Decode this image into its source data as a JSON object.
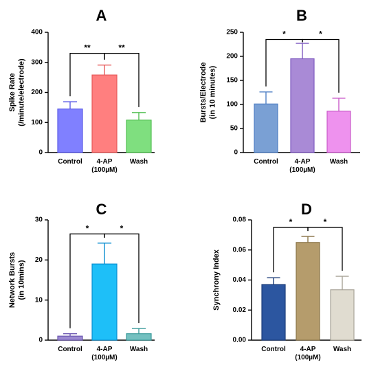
{
  "chart_data": [
    {
      "type": "bar",
      "panel": "A",
      "ylabel_lines": [
        "Spike Rate",
        "(/minute/electrode)"
      ],
      "categories": [
        [
          "Control"
        ],
        [
          "4-AP",
          "(100µM)"
        ],
        [
          "Wash"
        ]
      ],
      "values": [
        145,
        258,
        108
      ],
      "errors": [
        24,
        33,
        25
      ],
      "ylim": [
        0,
        400
      ],
      "yticks": [
        "0",
        "100",
        "200",
        "300",
        "400"
      ],
      "colors": [
        "#8080ff",
        "#ff7f7f",
        "#7fdf7f"
      ],
      "edge_colors": [
        "#5a5ae6",
        "#e65a5a",
        "#52bf52"
      ],
      "significance": [
        {
          "from": 0,
          "to": 1,
          "label": "**"
        },
        {
          "from": 1,
          "to": 2,
          "label": "**"
        }
      ],
      "bracket_y": 330
    },
    {
      "type": "bar",
      "panel": "B",
      "ylabel_lines": [
        "Bursts/Electrode",
        "(in 10 minutes)"
      ],
      "categories": [
        [
          "Control"
        ],
        [
          "4-AP",
          "(100µM)"
        ],
        [
          "Wash"
        ]
      ],
      "values": [
        101,
        195,
        86
      ],
      "errors": [
        25,
        32,
        27
      ],
      "ylim": [
        0,
        250
      ],
      "yticks": [
        "0",
        "50",
        "100",
        "150",
        "200",
        "250"
      ],
      "colors": [
        "#7aa0d4",
        "#a98ad6",
        "#ee92ee"
      ],
      "edge_colors": [
        "#4f7fc4",
        "#7f5ac0",
        "#c95ac9"
      ],
      "significance": [
        {
          "from": 0,
          "to": 1,
          "label": "*"
        },
        {
          "from": 1,
          "to": 2,
          "label": "*"
        }
      ],
      "bracket_y": 235
    },
    {
      "type": "bar",
      "panel": "C",
      "ylabel_lines": [
        "Network Bursts",
        "(in 10mins)"
      ],
      "categories": [
        [
          "Control"
        ],
        [
          "4-AP",
          "(100µM)"
        ],
        [
          "Wash"
        ]
      ],
      "values": [
        1,
        19,
        1.6
      ],
      "errors": [
        0.6,
        5.2,
        1.3
      ],
      "ylim": [
        0,
        30
      ],
      "yticks": [
        "0",
        "10",
        "20",
        "30"
      ],
      "colors": [
        "#9c8ad0",
        "#1ebff8",
        "#74c0c0"
      ],
      "edge_colors": [
        "#6b56b0",
        "#0a8ed0",
        "#3a9a9a"
      ],
      "significance": [
        {
          "from": 0,
          "to": 1,
          "label": "*"
        },
        {
          "from": 1,
          "to": 2,
          "label": "*"
        }
      ],
      "bracket_y": 26.5
    },
    {
      "type": "bar",
      "panel": "D",
      "ylabel_lines": [
        "Synchrony Index"
      ],
      "categories": [
        [
          "Control"
        ],
        [
          "4-AP",
          "(100µM)"
        ],
        [
          "Wash"
        ]
      ],
      "values": [
        0.037,
        0.065,
        0.0335
      ],
      "errors": [
        0.0045,
        0.004,
        0.009
      ],
      "ylim": [
        0,
        0.08
      ],
      "yticks": [
        "0.00",
        "0.02",
        "0.04",
        "0.06",
        "0.08"
      ],
      "colors": [
        "#2c56a0",
        "#b59c6c",
        "#e0dcd0"
      ],
      "edge_colors": [
        "#1c3c78",
        "#8a7448",
        "#a8a498"
      ],
      "significance": [
        {
          "from": 0,
          "to": 1,
          "label": "*"
        },
        {
          "from": 1,
          "to": 2,
          "label": "*"
        }
      ],
      "bracket_y": 0.075
    }
  ]
}
